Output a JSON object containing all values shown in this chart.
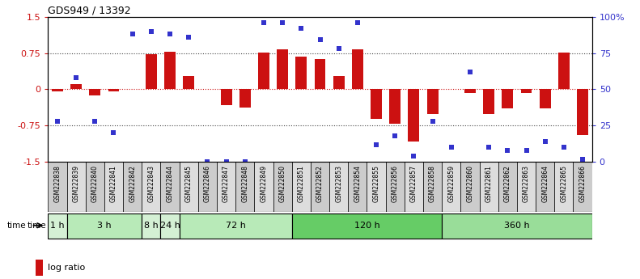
{
  "title": "GDS949 / 13392",
  "categories": [
    "GSM222838",
    "GSM222839",
    "GSM222840",
    "GSM222841",
    "GSM222842",
    "GSM222843",
    "GSM222844",
    "GSM222845",
    "GSM222846",
    "GSM222847",
    "GSM222848",
    "GSM222849",
    "GSM222850",
    "GSM222851",
    "GSM222852",
    "GSM222853",
    "GSM222854",
    "GSM222855",
    "GSM222856",
    "GSM222857",
    "GSM222858",
    "GSM222859",
    "GSM222860",
    "GSM222861",
    "GSM222862",
    "GSM222863",
    "GSM222864",
    "GSM222865",
    "GSM222866"
  ],
  "log_ratio": [
    -0.05,
    0.1,
    -0.13,
    -0.05,
    0.0,
    0.72,
    0.78,
    0.28,
    0.0,
    -0.32,
    -0.38,
    0.76,
    0.82,
    0.68,
    0.63,
    0.28,
    0.82,
    -0.62,
    -0.72,
    -1.08,
    -0.52,
    -0.0,
    -0.08,
    -0.52,
    -0.4,
    -0.08,
    -0.4,
    0.76,
    -0.95
  ],
  "percentile": [
    28,
    58,
    28,
    20,
    88,
    90,
    88,
    86,
    0,
    0,
    0,
    96,
    96,
    92,
    84,
    78,
    96,
    12,
    18,
    4,
    28,
    10,
    62,
    10,
    8,
    8,
    14,
    10,
    2
  ],
  "time_groups": [
    {
      "label": "1 h",
      "start": 0,
      "end": 1,
      "color": "#d4f0d4"
    },
    {
      "label": "3 h",
      "start": 1,
      "end": 5,
      "color": "#b8eab8"
    },
    {
      "label": "8 h",
      "start": 5,
      "end": 6,
      "color": "#d4f0d4"
    },
    {
      "label": "24 h",
      "start": 6,
      "end": 7,
      "color": "#d4f0d4"
    },
    {
      "label": "72 h",
      "start": 7,
      "end": 13,
      "color": "#b8eab8"
    },
    {
      "label": "120 h",
      "start": 13,
      "end": 21,
      "color": "#66cc66"
    },
    {
      "label": "360 h",
      "start": 21,
      "end": 29,
      "color": "#99dd99"
    }
  ],
  "bar_color": "#cc1111",
  "dot_color": "#3333cc",
  "left_ylim": [
    -1.5,
    1.5
  ],
  "right_ylim": [
    0,
    100
  ],
  "left_yticks": [
    -1.5,
    -0.75,
    0.0,
    0.75,
    1.5
  ],
  "left_yticklabels": [
    "-1.5",
    "-0.75",
    "0",
    "0.75",
    "1.5"
  ],
  "right_yticks": [
    0,
    25,
    50,
    75,
    100
  ],
  "right_yticklabels": [
    "0",
    "25",
    "50",
    "75",
    "100%"
  ],
  "background_color": "#ffffff",
  "plot_bg_color": "#ffffff",
  "xlabel_area_color": "#d0d0d0",
  "cat_box_color1": "#cccccc",
  "cat_box_color2": "#dddddd"
}
